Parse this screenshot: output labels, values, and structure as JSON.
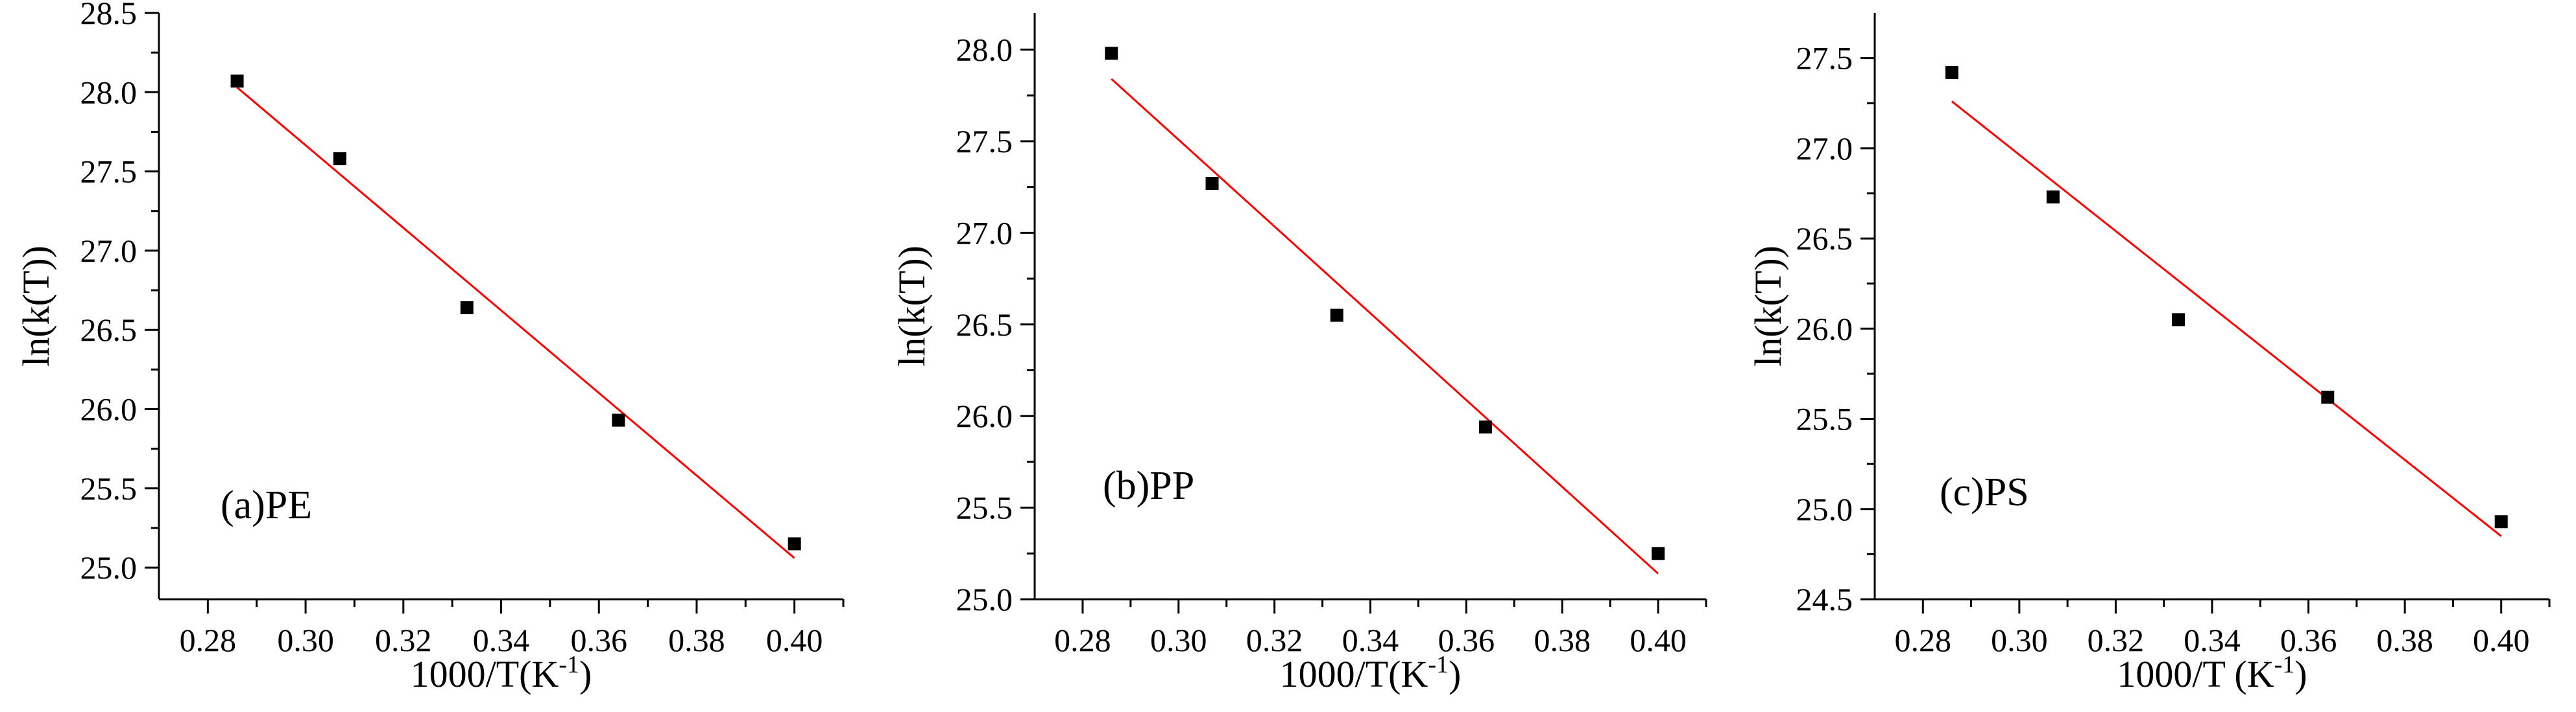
{
  "chart_data": [
    {
      "type": "scatter",
      "panel_label": "(a)PE",
      "xlabel": {
        "main": "1000/T(K",
        "sup": "-1",
        "close": ")"
      },
      "ylabel": "ln(k(T))",
      "xlim": [
        0.27,
        0.41
      ],
      "ylim": [
        24.8,
        28.5
      ],
      "x_ticks": [
        0.28,
        0.3,
        0.32,
        0.34,
        0.36,
        0.38,
        0.4
      ],
      "x_tick_labels": [
        "0.28",
        "0.30",
        "0.32",
        "0.34",
        "0.36",
        "0.38",
        "0.40"
      ],
      "y_ticks": [
        25.0,
        25.5,
        26.0,
        26.5,
        27.0,
        27.5,
        28.0,
        28.5
      ],
      "y_tick_labels": [
        "25.0",
        "25.5",
        "26.0",
        "26.5",
        "27.0",
        "27.5",
        "28.0",
        "28.5"
      ],
      "points": [
        {
          "x": 0.286,
          "y": 28.07
        },
        {
          "x": 0.307,
          "y": 27.58
        },
        {
          "x": 0.333,
          "y": 26.64
        },
        {
          "x": 0.364,
          "y": 25.93
        },
        {
          "x": 0.4,
          "y": 25.15
        }
      ],
      "fit_line": {
        "x0": 0.286,
        "y0": 28.03,
        "x1": 0.4,
        "y1": 25.06
      },
      "marker_color": "#000000",
      "line_color": "#ff0000"
    },
    {
      "type": "scatter",
      "panel_label": "(b)PP",
      "xlabel": {
        "main": "1000/T(K",
        "sup": "-1",
        "close": ")"
      },
      "ylabel": "ln(k(T))",
      "xlim": [
        0.27,
        0.41
      ],
      "ylim": [
        25.0,
        28.2
      ],
      "x_ticks": [
        0.28,
        0.3,
        0.32,
        0.34,
        0.36,
        0.38,
        0.4
      ],
      "x_tick_labels": [
        "0.28",
        "0.30",
        "0.32",
        "0.34",
        "0.36",
        "0.38",
        "0.40"
      ],
      "y_ticks": [
        25.0,
        25.5,
        26.0,
        26.5,
        27.0,
        27.5,
        28.0
      ],
      "y_tick_labels": [
        "25.0",
        "25.5",
        "26.0",
        "26.5",
        "27.0",
        "27.5",
        "28.0"
      ],
      "points": [
        {
          "x": 0.286,
          "y": 27.98
        },
        {
          "x": 0.307,
          "y": 27.27
        },
        {
          "x": 0.333,
          "y": 26.55
        },
        {
          "x": 0.364,
          "y": 25.94
        },
        {
          "x": 0.4,
          "y": 25.25
        }
      ],
      "fit_line": {
        "x0": 0.286,
        "y0": 27.84,
        "x1": 0.4,
        "y1": 25.14
      },
      "marker_color": "#000000",
      "line_color": "#ff0000"
    },
    {
      "type": "scatter",
      "panel_label": "(c)PS",
      "xlabel": {
        "main": "1000/T (K",
        "sup": "-1",
        "close": ")"
      },
      "ylabel": "ln(k(T))",
      "xlim": [
        0.27,
        0.41
      ],
      "ylim": [
        24.5,
        27.75
      ],
      "x_ticks": [
        0.28,
        0.3,
        0.32,
        0.34,
        0.36,
        0.38,
        0.4
      ],
      "x_tick_labels": [
        "0.28",
        "0.30",
        "0.32",
        "0.34",
        "0.36",
        "0.38",
        "0.40"
      ],
      "y_ticks": [
        24.5,
        25.0,
        25.5,
        26.0,
        26.5,
        27.0,
        27.5
      ],
      "y_tick_labels": [
        "24.5",
        "25.0",
        "25.5",
        "26.0",
        "26.5",
        "27.0",
        "27.5"
      ],
      "points": [
        {
          "x": 0.286,
          "y": 27.42
        },
        {
          "x": 0.307,
          "y": 26.73
        },
        {
          "x": 0.333,
          "y": 26.05
        },
        {
          "x": 0.364,
          "y": 25.62
        },
        {
          "x": 0.4,
          "y": 24.93
        }
      ],
      "fit_line": {
        "x0": 0.286,
        "y0": 27.26,
        "x1": 0.4,
        "y1": 24.85
      },
      "marker_color": "#000000",
      "line_color": "#ff0000"
    }
  ]
}
